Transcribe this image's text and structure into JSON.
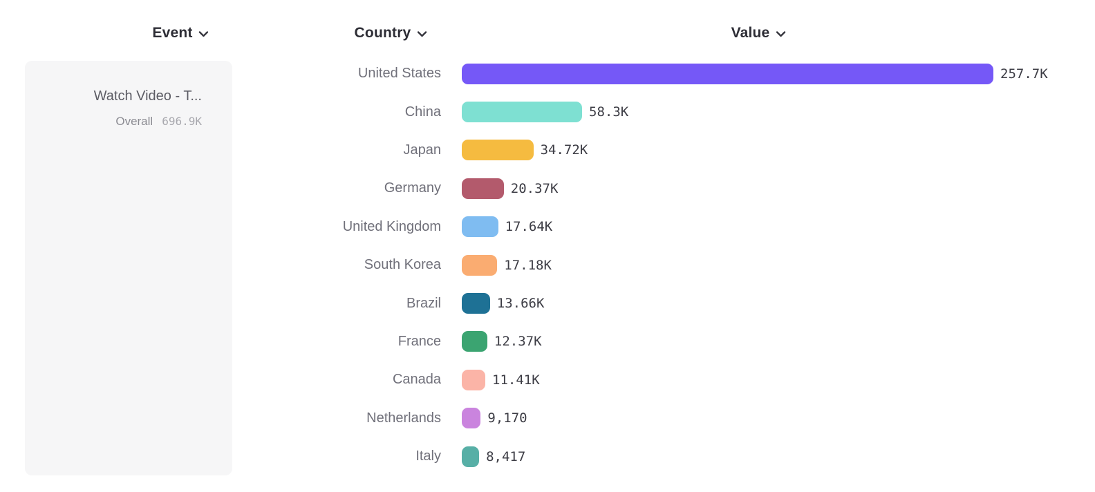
{
  "header": {
    "event": {
      "label": "Event"
    },
    "country": {
      "label": "Country"
    },
    "value": {
      "label": "Value"
    }
  },
  "event_card": {
    "title": "Watch Video - T...",
    "overall_label": "Overall",
    "overall_value": "696.9K"
  },
  "chart_data": {
    "type": "bar",
    "orientation": "horizontal",
    "title": "",
    "xlabel": "Value",
    "ylabel": "Country",
    "grid": false,
    "legend_position": "none",
    "xmax": 257700,
    "series_name": "Watch Video - T...",
    "categories": [
      "United States",
      "China",
      "Japan",
      "Germany",
      "United Kingdom",
      "South Korea",
      "Brazil",
      "France",
      "Canada",
      "Netherlands",
      "Italy"
    ],
    "values": [
      257700,
      58300,
      34720,
      20370,
      17640,
      17180,
      13660,
      12370,
      11410,
      9170,
      8417
    ],
    "value_labels": [
      "257.7K",
      "58.3K",
      "34.72K",
      "20.37K",
      "17.64K",
      "17.18K",
      "13.66K",
      "12.37K",
      "11.41K",
      "9,170",
      "8,417"
    ],
    "bar_colors": [
      "#7558F7",
      "#7EE0D2",
      "#F5BB40",
      "#B35A6C",
      "#7FBCF1",
      "#FAAC71",
      "#1E7195",
      "#3BA471",
      "#FBB4A7",
      "#CA84DE",
      "#57AFA6"
    ]
  },
  "colors": {
    "accent_purple": "#7558F7",
    "card_bg": "#F6F6F7",
    "header_text": "#2D2D35",
    "country_text": "#70707A",
    "value_text": "#3D3D45"
  }
}
